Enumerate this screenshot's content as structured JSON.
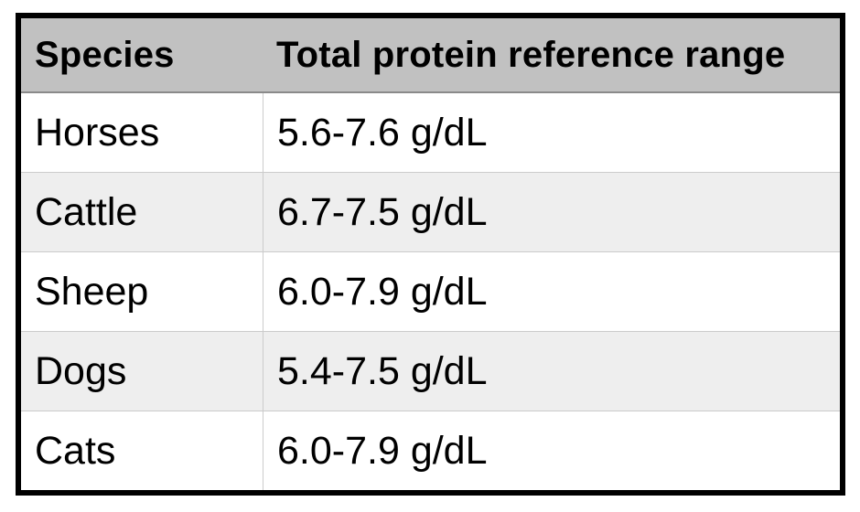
{
  "table": {
    "columns": [
      {
        "label": "Species"
      },
      {
        "label": "Total protein reference range"
      }
    ],
    "rows": [
      {
        "species": "Horses",
        "range": "5.6-7.6 g/dL"
      },
      {
        "species": "Cattle",
        "range": "6.7-7.5 g/dL"
      },
      {
        "species": "Sheep",
        "range": "6.0-7.9 g/dL"
      },
      {
        "species": "Dogs",
        "range": "5.4-7.5 g/dL"
      },
      {
        "species": "Cats",
        "range": "6.0-7.9 g/dL"
      }
    ],
    "unit": "g/dL"
  },
  "chart_data": {
    "type": "table",
    "title": "",
    "columns": [
      "Species",
      "Total protein reference range"
    ],
    "rows": [
      [
        "Horses",
        "5.6-7.6 g/dL"
      ],
      [
        "Cattle",
        "6.7-7.5 g/dL"
      ],
      [
        "Sheep",
        "6.0-7.9 g/dL"
      ],
      [
        "Dogs",
        "5.4-7.5 g/dL"
      ],
      [
        "Cats",
        "6.0-7.9 g/dL"
      ]
    ],
    "ranges_numeric": [
      {
        "species": "Horses",
        "min": 5.6,
        "max": 7.6,
        "unit": "g/dL"
      },
      {
        "species": "Cattle",
        "min": 6.7,
        "max": 7.5,
        "unit": "g/dL"
      },
      {
        "species": "Sheep",
        "min": 6.0,
        "max": 7.9,
        "unit": "g/dL"
      },
      {
        "species": "Dogs",
        "min": 5.4,
        "max": 7.5,
        "unit": "g/dL"
      },
      {
        "species": "Cats",
        "min": 6.0,
        "max": 7.9,
        "unit": "g/dL"
      }
    ]
  },
  "colors": {
    "outer_border": "#000000",
    "header_background": "#c1c1c1",
    "header_bottom_border": "#8a8a8a",
    "row_background": "#ffffff",
    "row_alt_background": "#eeeeee",
    "grid_line": "#cbcbcb",
    "text": "#000000"
  }
}
